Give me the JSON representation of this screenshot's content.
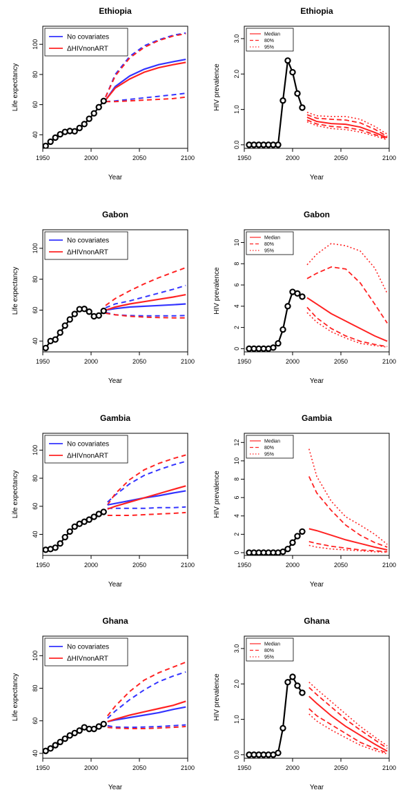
{
  "colors": {
    "covariates_free": "#3333ff",
    "hiv": "#ff2222",
    "observed": "#000000"
  },
  "chart_data": [
    {
      "type": "line",
      "title": "Ethiopia",
      "xlabel": "Year",
      "ylabel": "Life expectancy",
      "xlim": [
        1950,
        2100
      ],
      "ylim": [
        31,
        112
      ],
      "xticks": [
        1950,
        2000,
        2050,
        2100
      ],
      "yticks": [
        40,
        60,
        80,
        100
      ],
      "legend": {
        "placement": "top-left",
        "entries": [
          "No covariates",
          "ΔHIVnonART"
        ]
      },
      "observed": {
        "x": [
          1953,
          1958,
          1963,
          1968,
          1973,
          1978,
          1983,
          1988,
          1993,
          1998,
          2003,
          2008,
          2013
        ],
        "y": [
          32.6,
          35.4,
          38.1,
          40.3,
          41.9,
          42.5,
          42.3,
          44.5,
          47.1,
          50.6,
          54.2,
          58.3,
          62.4
        ]
      },
      "series": [
        {
          "legend": "No covariates",
          "color": "#3333ff",
          "x": [
            2015,
            2025,
            2040,
            2055,
            2070,
            2085,
            2098
          ],
          "median": [
            63,
            72,
            79,
            83.5,
            86.5,
            88.5,
            90
          ],
          "lower95": [
            62,
            62.5,
            63.5,
            64.5,
            65.5,
            66.5,
            67.5
          ],
          "upper95": [
            65,
            80,
            92,
            99,
            103,
            106,
            107.5
          ]
        },
        {
          "legend": "ΔHIVnonART",
          "color": "#ff2222",
          "x": [
            2015,
            2025,
            2040,
            2055,
            2070,
            2085,
            2098
          ],
          "median": [
            63,
            71,
            77,
            81.5,
            84.5,
            86.5,
            88
          ],
          "lower95": [
            62,
            62,
            62.5,
            63,
            63.5,
            64,
            65
          ],
          "upper95": [
            65,
            79,
            91,
            98,
            102.5,
            105.5,
            107
          ]
        }
      ]
    },
    {
      "type": "line",
      "title": "Ethiopia",
      "xlabel": "Year",
      "ylabel": "HIV prevalence",
      "xlim": [
        1950,
        2100
      ],
      "ylim": [
        -0.1,
        3.35
      ],
      "xticks": [
        1950,
        2000,
        2050,
        2100
      ],
      "yticks": [
        0,
        1,
        2,
        3
      ],
      "ytick_labels": [
        "0.0",
        "1.0",
        "2.0",
        "3.0"
      ],
      "legend": {
        "placement": "top-left",
        "entries": [
          "Median",
          "80%",
          "95%"
        ]
      },
      "observed": {
        "x": [
          1955,
          1960,
          1965,
          1970,
          1975,
          1980,
          1985,
          1990,
          1995,
          2000,
          2005,
          2010
        ],
        "y": [
          0,
          0,
          0,
          0,
          0,
          0,
          0,
          1.25,
          2.38,
          2.05,
          1.45,
          1.05
        ]
      },
      "median": {
        "x": [
          2015,
          2025,
          2040,
          2055,
          2070,
          2085,
          2098
        ],
        "y": [
          0.78,
          0.66,
          0.6,
          0.58,
          0.5,
          0.35,
          0.2
        ]
      },
      "lower80": [
        0.7,
        0.59,
        0.52,
        0.49,
        0.42,
        0.29,
        0.17
      ],
      "upper80": [
        0.85,
        0.75,
        0.72,
        0.7,
        0.62,
        0.44,
        0.24
      ],
      "lower95": [
        0.65,
        0.54,
        0.46,
        0.43,
        0.36,
        0.25,
        0.14
      ],
      "upper95": [
        0.92,
        0.82,
        0.8,
        0.8,
        0.72,
        0.52,
        0.3
      ]
    },
    {
      "type": "line",
      "title": "Gabon",
      "xlabel": "Year",
      "ylabel": "Life expectancy",
      "xlim": [
        1950,
        2100
      ],
      "ylim": [
        33,
        112
      ],
      "xticks": [
        1950,
        2000,
        2050,
        2100
      ],
      "yticks": [
        40,
        60,
        80,
        100
      ],
      "legend": {
        "placement": "top-left",
        "entries": [
          "No covariates",
          "ΔHIVnonART"
        ]
      },
      "observed": {
        "x": [
          1953,
          1958,
          1963,
          1968,
          1973,
          1978,
          1983,
          1988,
          1993,
          1998,
          2003,
          2008,
          2013
        ],
        "y": [
          35.5,
          40,
          41,
          45.5,
          50,
          54,
          57.5,
          60.6,
          60.8,
          59,
          56,
          56.5,
          59.5
        ]
      },
      "series": [
        {
          "legend": "No covariates",
          "color": "#3333ff",
          "x": [
            2015,
            2025,
            2040,
            2055,
            2070,
            2085,
            2098
          ],
          "median": [
            60,
            61,
            62,
            62.5,
            63,
            63.5,
            64
          ],
          "lower95": [
            58.5,
            57,
            56.5,
            56.3,
            56.3,
            56.3,
            56.5
          ],
          "upper95": [
            61.5,
            64,
            66,
            68.5,
            71,
            73.5,
            76
          ]
        },
        {
          "legend": "ΔHIVnonART",
          "color": "#ff2222",
          "x": [
            2015,
            2025,
            2040,
            2055,
            2070,
            2085,
            2098
          ],
          "median": [
            60,
            62,
            64,
            65.5,
            67,
            68.5,
            70
          ],
          "lower95": [
            58,
            57,
            56,
            55.5,
            55.2,
            55,
            55
          ],
          "upper95": [
            63,
            67.5,
            72.5,
            77,
            81,
            84.5,
            87.5
          ]
        }
      ]
    },
    {
      "type": "line",
      "title": "Gabon",
      "xlabel": "Year",
      "ylabel": "HIV prevalence",
      "xlim": [
        1950,
        2100
      ],
      "ylim": [
        -0.3,
        11.2
      ],
      "xticks": [
        1950,
        2000,
        2050,
        2100
      ],
      "yticks": [
        0,
        2,
        4,
        6,
        8,
        10
      ],
      "legend": {
        "placement": "top-left",
        "entries": [
          "Median",
          "80%",
          "95%"
        ]
      },
      "observed": {
        "x": [
          1955,
          1960,
          1965,
          1970,
          1975,
          1980,
          1985,
          1990,
          1995,
          2000,
          2005,
          2010
        ],
        "y": [
          0,
          0,
          0,
          0,
          0,
          0.1,
          0.5,
          1.8,
          4.0,
          5.35,
          5.2,
          4.9
        ]
      },
      "median": {
        "x": [
          2015,
          2025,
          2040,
          2055,
          2070,
          2085,
          2098
        ],
        "y": [
          4.8,
          4.2,
          3.3,
          2.6,
          1.9,
          1.2,
          0.7
        ]
      },
      "lower80": [
        3.9,
        2.9,
        1.9,
        1.2,
        0.7,
        0.4,
        0.2
      ],
      "upper80": [
        6.6,
        7.1,
        7.7,
        7.5,
        6.2,
        4.2,
        2.4
      ],
      "lower95": [
        3.4,
        2.5,
        1.6,
        1.0,
        0.5,
        0.3,
        0.15
      ],
      "upper95": [
        7.9,
        8.9,
        9.9,
        9.7,
        9.2,
        7.6,
        5.2
      ]
    },
    {
      "type": "line",
      "title": "Gambia",
      "xlabel": "Year",
      "ylabel": "Life expectancy",
      "xlim": [
        1950,
        2100
      ],
      "ylim": [
        25,
        112
      ],
      "xticks": [
        1950,
        2000,
        2050,
        2100
      ],
      "yticks": [
        40,
        60,
        80,
        100
      ],
      "legend": {
        "placement": "top-left",
        "entries": [
          "No covariates",
          "ΔHIVnonART"
        ]
      },
      "observed": {
        "x": [
          1953,
          1958,
          1963,
          1968,
          1973,
          1978,
          1983,
          1988,
          1993,
          1998,
          2003,
          2008,
          2013
        ],
        "y": [
          29,
          29.5,
          30.5,
          33.5,
          38,
          42,
          45.5,
          47.5,
          49,
          50.5,
          52.5,
          54.5,
          56
        ]
      },
      "series": [
        {
          "legend": "No covariates",
          "color": "#3333ff",
          "x": [
            2017,
            2025,
            2040,
            2055,
            2070,
            2085,
            2098
          ],
          "median": [
            61,
            62,
            64,
            66,
            67.5,
            69.5,
            71
          ],
          "lower95": [
            58.5,
            58.5,
            58.5,
            58.5,
            59,
            59,
            59.5
          ],
          "upper95": [
            63,
            68,
            76,
            82,
            86,
            89.5,
            92
          ]
        },
        {
          "legend": "ΔHIVnonART",
          "color": "#ff2222",
          "x": [
            2017,
            2025,
            2040,
            2055,
            2070,
            2085,
            2098
          ],
          "median": [
            58,
            60,
            63,
            66,
            69,
            72,
            74.5
          ],
          "lower95": [
            53.5,
            53.5,
            53.5,
            54,
            54.5,
            55,
            55.5
          ],
          "upper95": [
            61,
            69,
            79,
            86,
            90.5,
            94,
            96.5
          ]
        }
      ]
    },
    {
      "type": "line",
      "title": "Gambia",
      "xlabel": "Year",
      "ylabel": "HIV prevalence",
      "xlim": [
        1950,
        2100
      ],
      "ylim": [
        -0.3,
        13
      ],
      "xticks": [
        1950,
        2000,
        2050,
        2100
      ],
      "yticks": [
        0,
        2,
        4,
        6,
        8,
        10,
        12
      ],
      "legend": {
        "placement": "top-left",
        "entries": [
          "Median",
          "80%",
          "95%"
        ]
      },
      "observed": {
        "x": [
          1955,
          1960,
          1965,
          1970,
          1975,
          1980,
          1985,
          1990,
          1995,
          2000,
          2005,
          2010
        ],
        "y": [
          0,
          0,
          0,
          0,
          0,
          0,
          0,
          0.1,
          0.4,
          1.1,
          1.8,
          2.3
        ]
      },
      "median": {
        "x": [
          2017,
          2025,
          2040,
          2055,
          2070,
          2085,
          2098
        ],
        "y": [
          2.6,
          2.4,
          1.9,
          1.4,
          1.0,
          0.6,
          0.3
        ]
      },
      "lower80": [
        1.2,
        1.0,
        0.7,
        0.5,
        0.3,
        0.2,
        0.1
      ],
      "upper80": [
        8.3,
        6.5,
        4.6,
        3.0,
        1.9,
        1.1,
        0.6
      ],
      "lower95": [
        0.8,
        0.6,
        0.4,
        0.3,
        0.2,
        0.1,
        0.05
      ],
      "upper95": [
        11.3,
        8.3,
        5.6,
        3.9,
        3.0,
        2.0,
        0.9
      ]
    },
    {
      "type": "line",
      "title": "Ghana",
      "xlabel": "Year",
      "ylabel": "Life expectancy",
      "xlim": [
        1950,
        2100
      ],
      "ylim": [
        37,
        112
      ],
      "xticks": [
        1950,
        2000,
        2050,
        2100
      ],
      "yticks": [
        40,
        60,
        80,
        100
      ],
      "legend": {
        "placement": "top-left",
        "entries": [
          "No covariates",
          "ΔHIVnonART"
        ]
      },
      "observed": {
        "x": [
          1953,
          1958,
          1963,
          1968,
          1973,
          1978,
          1983,
          1988,
          1993,
          1998,
          2003,
          2008,
          2013
        ],
        "y": [
          41.5,
          43,
          45,
          47,
          49,
          51,
          52.5,
          54,
          56,
          55,
          55,
          56.5,
          58
        ]
      },
      "series": [
        {
          "legend": "No covariates",
          "color": "#3333ff",
          "x": [
            2017,
            2025,
            2040,
            2055,
            2070,
            2085,
            2098
          ],
          "median": [
            59.5,
            60.5,
            62,
            63.5,
            65,
            67,
            68.5
          ],
          "lower95": [
            57,
            56.2,
            56,
            56.2,
            56.5,
            57,
            57.5
          ],
          "upper95": [
            61.5,
            66,
            73,
            79,
            84,
            87.5,
            90
          ]
        },
        {
          "legend": "ΔHIVnonART",
          "color": "#ff2222",
          "x": [
            2017,
            2025,
            2040,
            2055,
            2070,
            2085,
            2098
          ],
          "median": [
            59.5,
            61,
            63.5,
            65.5,
            67.5,
            69.5,
            72
          ],
          "lower95": [
            56,
            55.5,
            55.2,
            55.2,
            55.5,
            56,
            56.5
          ],
          "upper95": [
            63,
            69,
            78,
            85,
            89.5,
            93,
            96
          ]
        }
      ]
    },
    {
      "type": "line",
      "title": "Ghana",
      "xlabel": "Year",
      "ylabel": "HIV prevalence",
      "xlim": [
        1950,
        2100
      ],
      "ylim": [
        -0.1,
        3.35
      ],
      "xticks": [
        1950,
        2000,
        2050,
        2100
      ],
      "yticks": [
        0,
        1,
        2,
        3
      ],
      "ytick_labels": [
        "0.0",
        "1.0",
        "2.0",
        "3.0"
      ],
      "legend": {
        "placement": "top-left",
        "entries": [
          "Median",
          "80%",
          "95%"
        ]
      },
      "observed": {
        "x": [
          1955,
          1960,
          1965,
          1970,
          1975,
          1980,
          1985,
          1990,
          1995,
          2000,
          2005,
          2010
        ],
        "y": [
          0,
          0,
          0,
          0,
          0,
          0,
          0.05,
          0.75,
          2.05,
          2.2,
          1.95,
          1.75
        ]
      },
      "median": {
        "x": [
          2017,
          2025,
          2040,
          2055,
          2070,
          2085,
          2098
        ],
        "y": [
          1.65,
          1.45,
          1.1,
          0.8,
          0.55,
          0.3,
          0.1
        ]
      },
      "lower80": [
        1.3,
        1.1,
        0.85,
        0.6,
        0.35,
        0.18,
        0.05
      ],
      "upper80": [
        1.9,
        1.7,
        1.35,
        1.0,
        0.7,
        0.42,
        0.18
      ],
      "lower95": [
        1.15,
        0.95,
        0.7,
        0.48,
        0.27,
        0.12,
        0.02
      ],
      "upper95": [
        2.05,
        1.85,
        1.5,
        1.15,
        0.8,
        0.5,
        0.25
      ]
    }
  ]
}
